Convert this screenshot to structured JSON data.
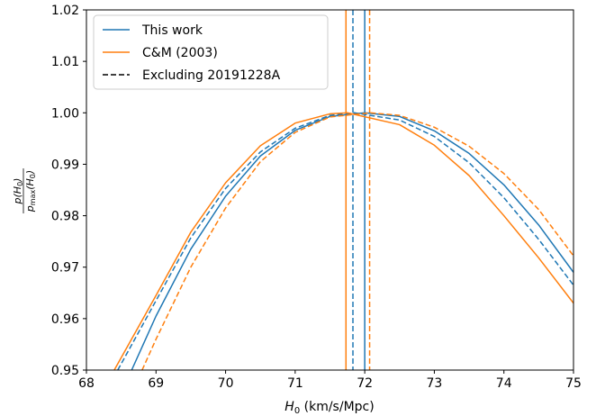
{
  "chart_data": {
    "type": "line",
    "xlabel_main": "H",
    "xlabel_sub": "0",
    "xlabel_rest": " (km/s/Mpc)",
    "ylabel": {
      "num": "p(H",
      "num_sub": "0",
      "num_end": ")",
      "den": "p",
      "den_sub1": "max",
      "den_mid": "(H",
      "den_sub2": "0",
      "den_end": ")"
    },
    "xlim": [
      68,
      75
    ],
    "ylim": [
      0.95,
      1.02
    ],
    "xticks": [
      "68",
      "69",
      "70",
      "71",
      "72",
      "73",
      "74",
      "75"
    ],
    "yticks": [
      "0.95",
      "0.96",
      "0.97",
      "0.98",
      "0.99",
      "1.00",
      "1.01",
      "1.02"
    ],
    "grid": false,
    "legend_position": "top-left",
    "colors": {
      "blue": "#1f77b4",
      "orange": "#ff7f0e",
      "black": "#000000"
    },
    "legend": [
      {
        "label": "This work",
        "color": "#1f77b4",
        "dash": "solid"
      },
      {
        "label": "C&M (2003)",
        "color": "#ff7f0e",
        "dash": "solid"
      },
      {
        "label": "Excluding 20191228A",
        "color": "#000000",
        "dash": "dashed"
      }
    ],
    "series": [
      {
        "color": "#1f77b4",
        "dash": "solid",
        "x": [
          68.65,
          69.0,
          69.5,
          70.0,
          70.5,
          71.0,
          71.5,
          72.0,
          72.5,
          73.0,
          73.5,
          74.0,
          74.5,
          75.0
        ],
        "y": [
          0.95,
          0.9605,
          0.9735,
          0.9838,
          0.9916,
          0.9966,
          0.9993,
          1.0,
          0.9993,
          0.9965,
          0.9921,
          0.986,
          0.9782,
          0.969
        ]
      },
      {
        "color": "#1f77b4",
        "dash": "dashed",
        "x": [
          68.45,
          69.0,
          69.5,
          70.0,
          70.5,
          71.0,
          71.5,
          71.85,
          72.5,
          73.0,
          73.5,
          74.0,
          74.5,
          75.0
        ],
        "y": [
          0.95,
          0.9635,
          0.9757,
          0.9853,
          0.9924,
          0.997,
          0.9995,
          1.0,
          0.9986,
          0.9954,
          0.9903,
          0.9835,
          0.9754,
          0.9665
        ]
      },
      {
        "color": "#ff7f0e",
        "dash": "solid",
        "x": [
          68.4,
          69.0,
          69.5,
          70.0,
          70.5,
          71.0,
          71.5,
          71.75,
          72.5,
          73.0,
          73.5,
          74.0,
          74.5,
          75.0
        ],
        "y": [
          0.95,
          0.9645,
          0.9768,
          0.9864,
          0.9936,
          0.998,
          0.9998,
          1.0,
          0.9977,
          0.9937,
          0.9878,
          0.98,
          0.9718,
          0.963
        ]
      },
      {
        "color": "#ff7f0e",
        "dash": "dashed",
        "x": [
          68.8,
          69.0,
          69.5,
          70.0,
          70.5,
          71.0,
          71.5,
          72.08,
          72.5,
          73.0,
          73.5,
          74.0,
          74.5,
          75.0
        ],
        "y": [
          0.95,
          0.956,
          0.97,
          0.9815,
          0.9905,
          0.9962,
          0.9992,
          1.0,
          0.9995,
          0.9972,
          0.9935,
          0.9882,
          0.9812,
          0.9722
        ]
      }
    ],
    "vlines": [
      {
        "x": 71.73,
        "color": "#ff7f0e",
        "dash": "solid"
      },
      {
        "x": 71.83,
        "color": "#1f77b4",
        "dash": "dashed"
      },
      {
        "x": 72.0,
        "color": "#1f77b4",
        "dash": "solid"
      },
      {
        "x": 72.07,
        "color": "#ff7f0e",
        "dash": "dashed"
      }
    ]
  }
}
